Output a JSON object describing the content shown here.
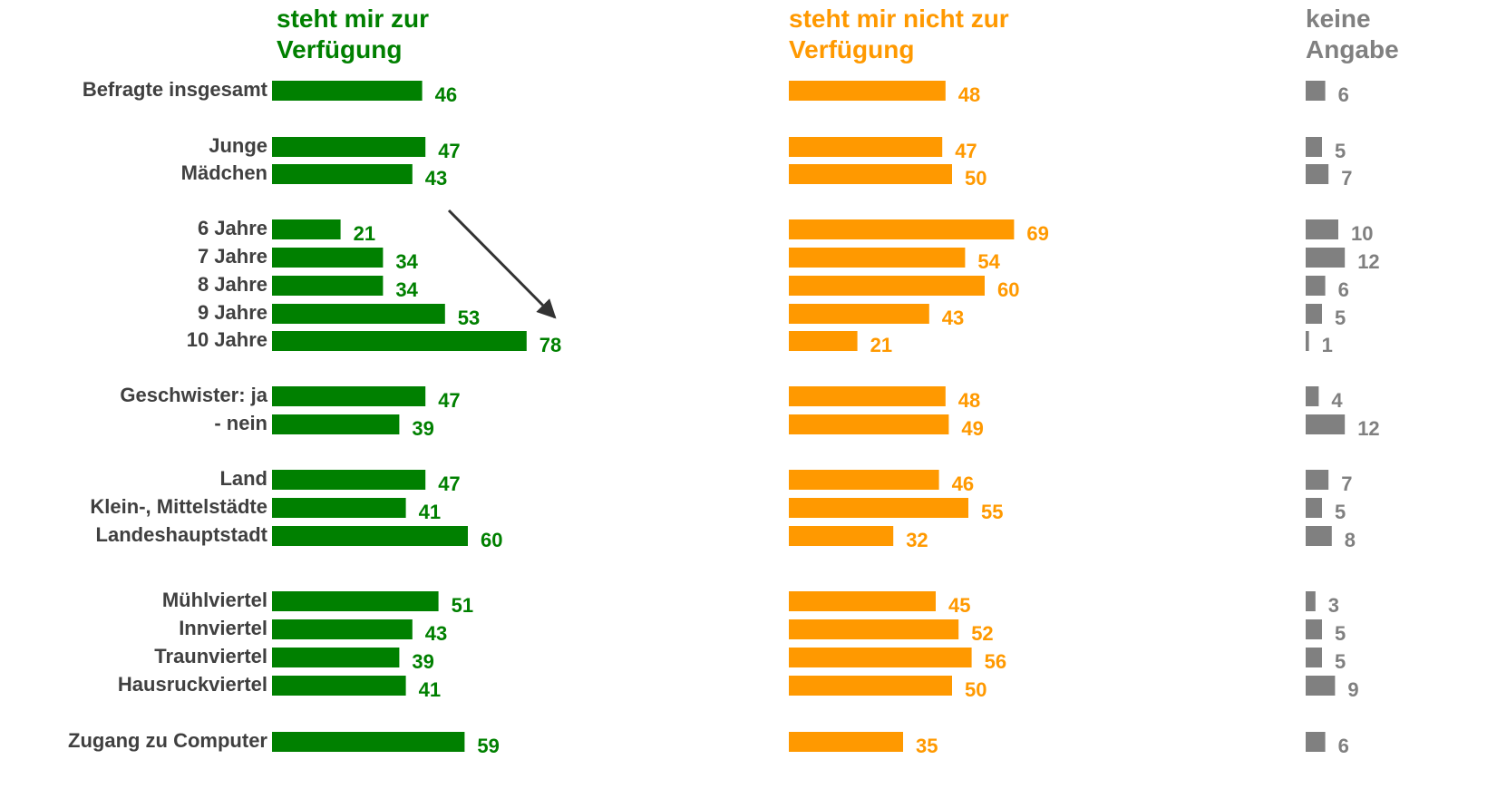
{
  "chart_data": {
    "type": "bar",
    "categories": [
      "Befragte insgesamt",
      "Junge",
      "Mädchen",
      "6 Jahre",
      "7 Jahre",
      "8 Jahre",
      "9 Jahre",
      "10 Jahre",
      "Geschwister: ja",
      "- nein",
      "Land",
      "Klein-, Mittelstädte",
      "Landeshauptstadt",
      "Mühlviertel",
      "Innviertel",
      "Traunviertel",
      "Hausruckviertel",
      "Zugang zu Computer"
    ],
    "series": [
      {
        "name": "steht mir zur Verfügung",
        "color": "#008000",
        "values": [
          46,
          47,
          43,
          21,
          34,
          34,
          53,
          78,
          47,
          39,
          47,
          41,
          60,
          51,
          43,
          39,
          41,
          59
        ]
      },
      {
        "name": "steht mir nicht zur Verfügung",
        "color": "#ff9900",
        "values": [
          48,
          47,
          50,
          69,
          54,
          60,
          43,
          21,
          48,
          49,
          46,
          55,
          32,
          45,
          52,
          56,
          50,
          35
        ]
      },
      {
        "name": "keine Angabe",
        "color": "#808080",
        "values": [
          6,
          5,
          7,
          10,
          12,
          6,
          5,
          1,
          4,
          12,
          7,
          5,
          8,
          3,
          5,
          5,
          9,
          6
        ]
      }
    ]
  }
}
